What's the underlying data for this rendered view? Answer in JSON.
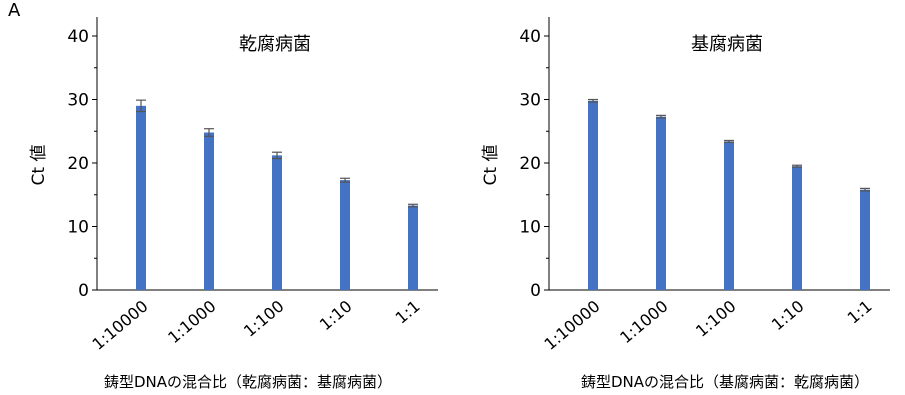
{
  "panel_label": "A",
  "chart_data": [
    {
      "type": "bar",
      "title": "乾腐病菌",
      "ylabel": "Ct 値",
      "xlabel": "鋳型DNAの混合比（乾腐病菌：基腐病菌）",
      "categories": [
        "1:10000",
        "1:1000",
        "1:100",
        "1:10",
        "1:1"
      ],
      "values": [
        29.0,
        24.8,
        21.2,
        17.3,
        13.3
      ],
      "errors": [
        0.9,
        0.6,
        0.5,
        0.3,
        0.2
      ],
      "ylim": [
        0,
        40
      ],
      "yticks": [
        0,
        10,
        20,
        30,
        40
      ],
      "grid": false,
      "bar_color": "#4472c4",
      "error_color": "#555555"
    },
    {
      "type": "bar",
      "title": "基腐病菌",
      "ylabel": "Ct 値",
      "xlabel": "鋳型DNAの混合比（基腐病菌：乾腐病菌）",
      "categories": [
        "1:10000",
        "1:1000",
        "1:100",
        "1:10",
        "1:1"
      ],
      "values": [
        29.8,
        27.3,
        23.4,
        19.5,
        15.8
      ],
      "errors": [
        0.2,
        0.2,
        0.15,
        0.15,
        0.2
      ],
      "ylim": [
        0,
        40
      ],
      "yticks": [
        0,
        10,
        20,
        30,
        40
      ],
      "grid": false,
      "bar_color": "#4472c4",
      "error_color": "#555555"
    }
  ]
}
